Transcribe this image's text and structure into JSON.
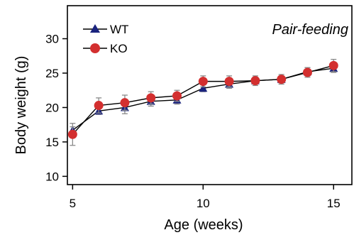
{
  "chart_data": {
    "type": "line",
    "annotation": "Pair-feeding",
    "xlabel": "Age (weeks)",
    "ylabel": "Body weight (g)",
    "xlim": [
      4.8,
      15.7
    ],
    "ylim": [
      8.8,
      34.8
    ],
    "xticks": [
      5,
      10,
      15
    ],
    "yticks": [
      10,
      15,
      20,
      25,
      30
    ],
    "x": [
      5,
      6,
      7,
      8,
      9,
      10,
      11,
      12,
      13,
      14,
      15
    ],
    "legend_position": "top-left",
    "grid": false,
    "series": [
      {
        "name": "WT",
        "marker": "triangle",
        "color": "#1a237e",
        "values": [
          16.7,
          19.5,
          20.0,
          20.9,
          21.1,
          22.8,
          23.4,
          23.9,
          24.1,
          25.2,
          25.7
        ],
        "errors": [
          0.5,
          0.5,
          0.9,
          0.7,
          0.6,
          0.5,
          0.6,
          0.5,
          0.5,
          0.6,
          0.6
        ]
      },
      {
        "name": "KO",
        "marker": "circle",
        "color": "#d32f2f",
        "values": [
          16.1,
          20.3,
          20.7,
          21.4,
          21.7,
          23.8,
          23.8,
          23.9,
          24.1,
          25.1,
          26.1
        ],
        "errors": [
          1.6,
          1.1,
          1.1,
          0.9,
          0.8,
          0.8,
          0.8,
          0.7,
          0.7,
          0.7,
          0.9
        ]
      }
    ]
  }
}
